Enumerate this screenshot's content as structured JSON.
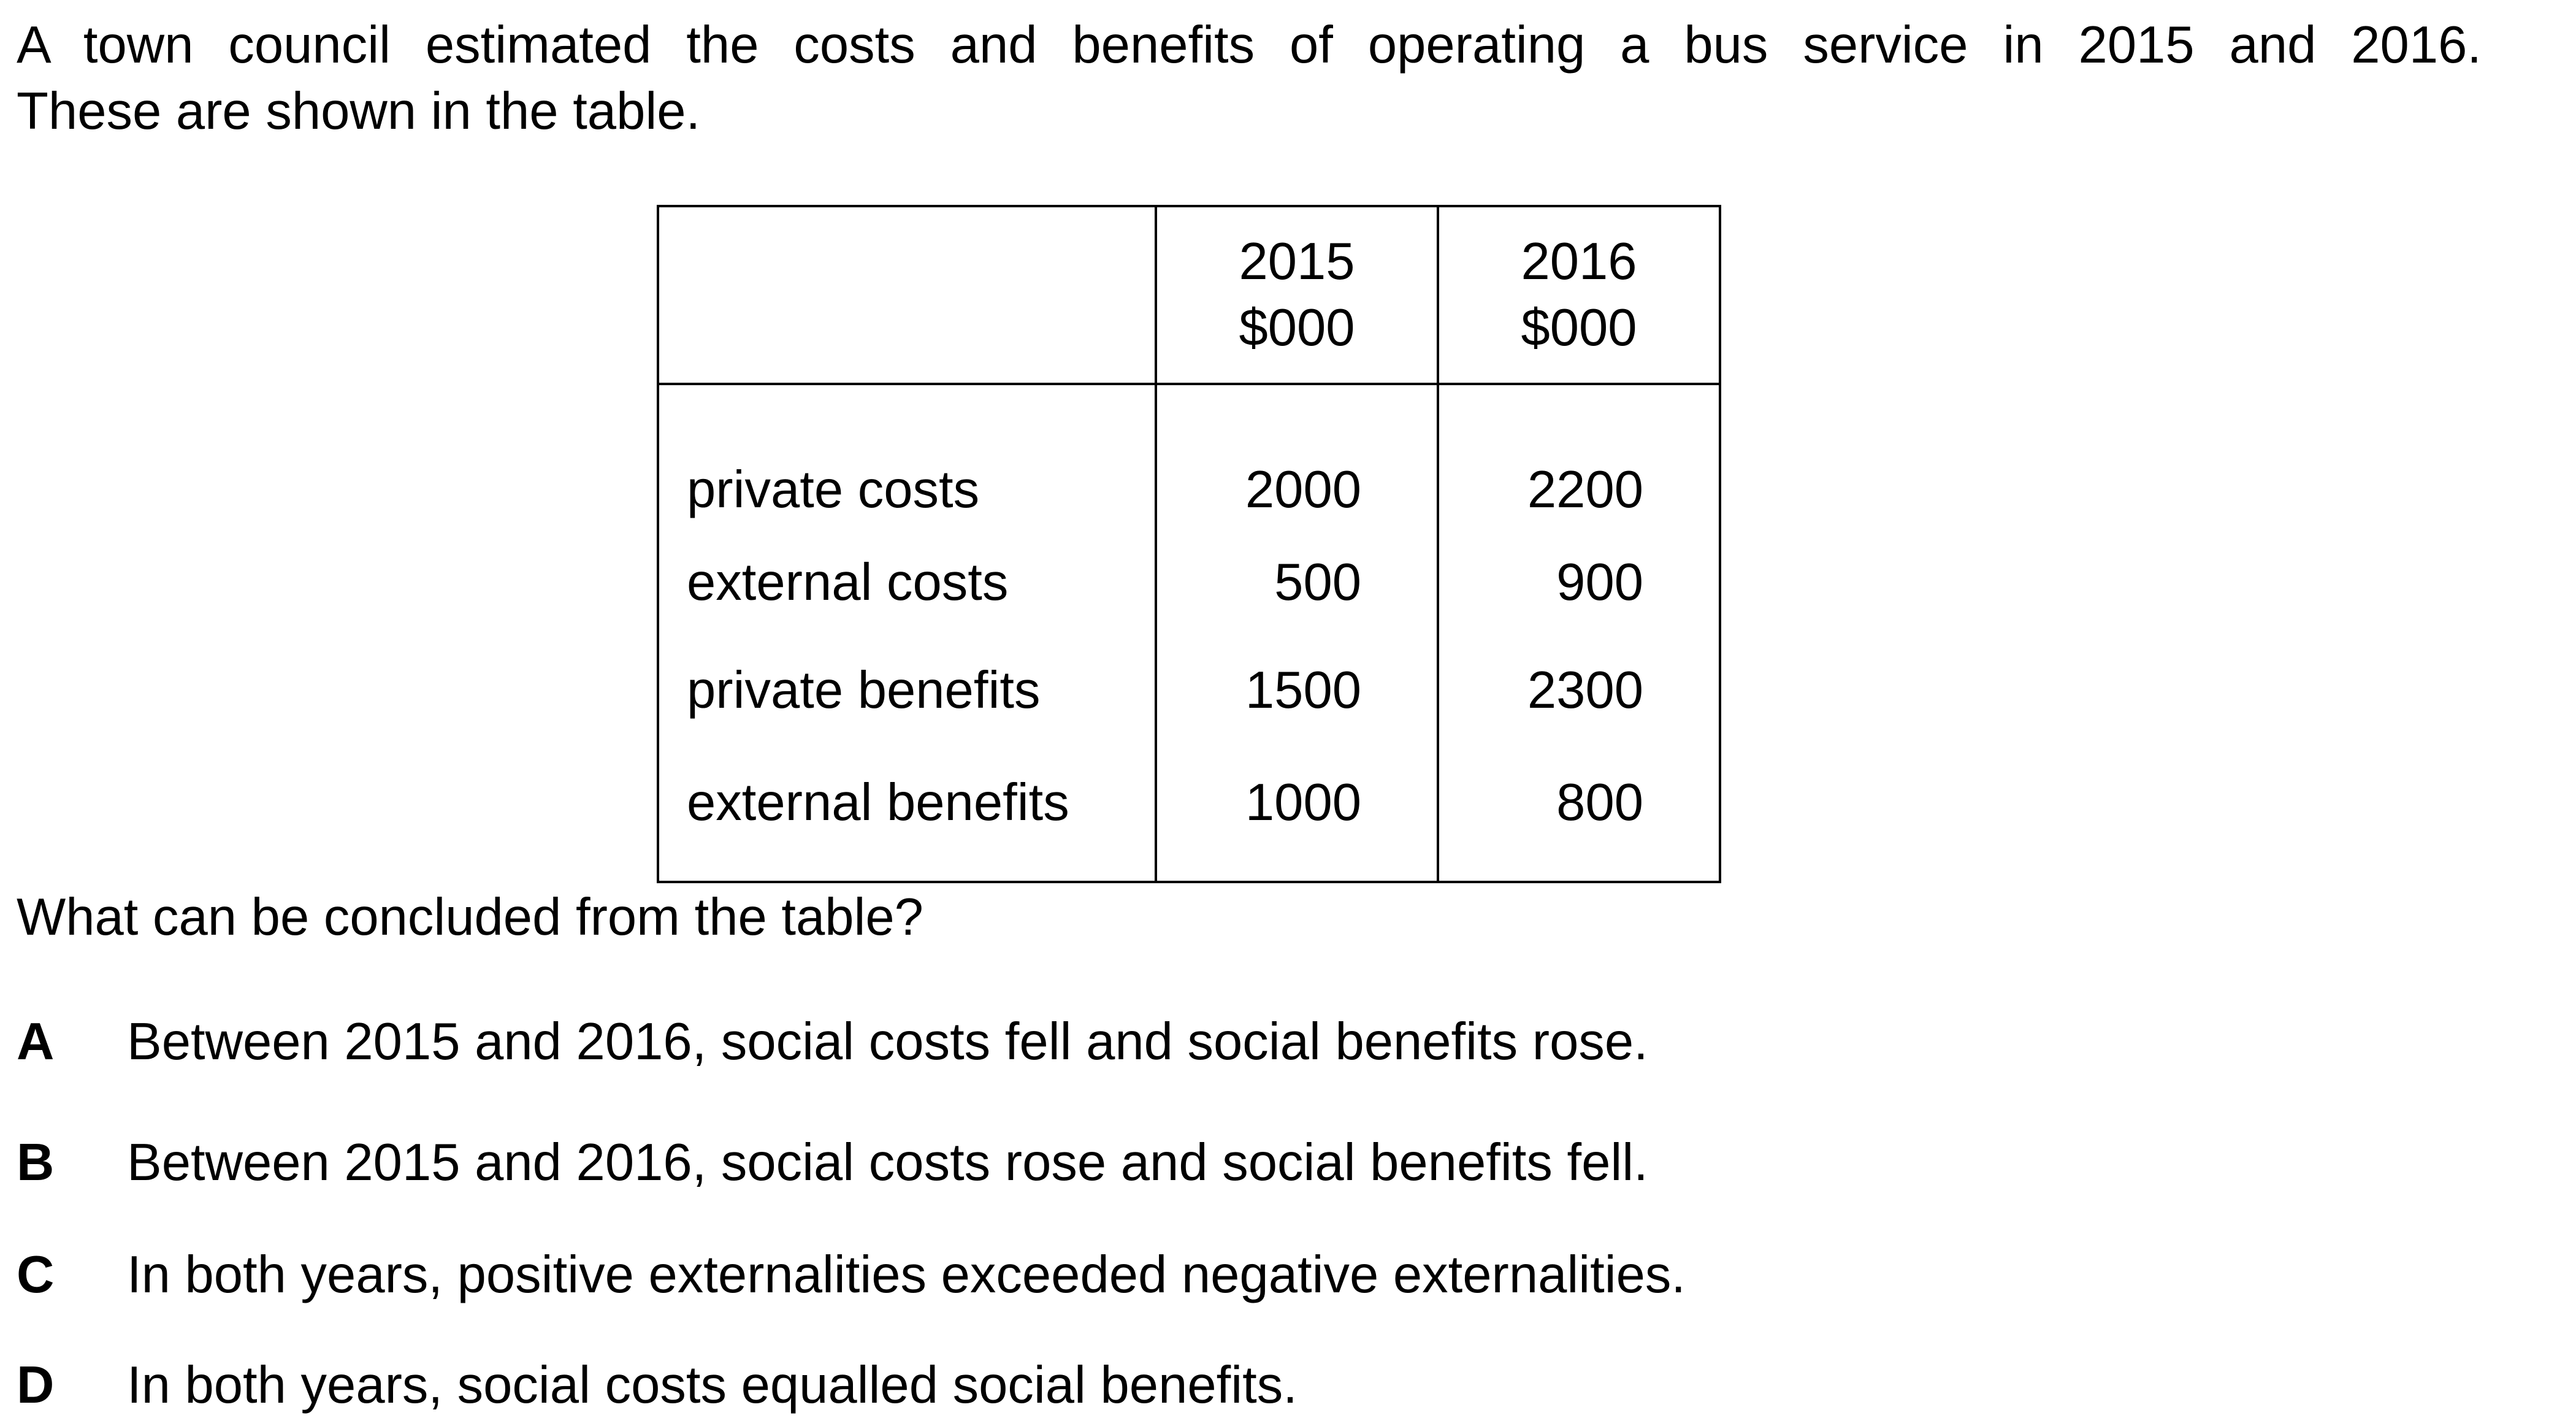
{
  "intro": {
    "line1": "A town council estimated the costs and benefits of operating a bus service in 2015 and 2016.",
    "line2": "These are shown in the table."
  },
  "table": {
    "header": {
      "blank": "",
      "col1_year": "2015",
      "col1_unit": "$000",
      "col2_year": "2016",
      "col2_unit": "$000"
    },
    "rows": [
      {
        "label": "private costs",
        "v2015": "2000",
        "v2016": "2200"
      },
      {
        "label": "external costs",
        "v2015": "500",
        "v2016": "900"
      },
      {
        "label": "private benefits",
        "v2015": "1500",
        "v2016": "2300"
      },
      {
        "label": "external benefits",
        "v2015": "1000",
        "v2016": "800"
      }
    ]
  },
  "question": "What can be concluded from the table?",
  "options": [
    {
      "letter": "A",
      "text": "Between 2015 and 2016, social costs fell and social benefits rose."
    },
    {
      "letter": "B",
      "text": "Between 2015 and 2016, social costs rose and social benefits fell."
    },
    {
      "letter": "C",
      "text": "In both years, positive externalities exceeded negative externalities."
    },
    {
      "letter": "D",
      "text": "In both years, social costs equalled social benefits."
    }
  ]
}
